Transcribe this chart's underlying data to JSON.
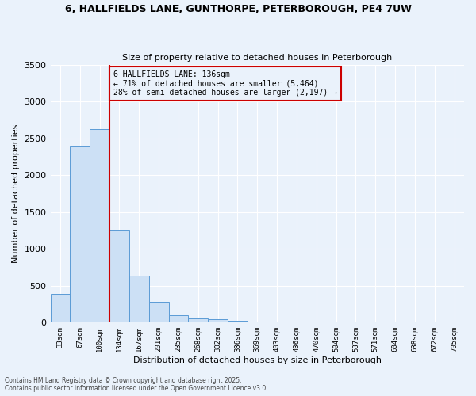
{
  "title_line1": "6, HALLFIELDS LANE, GUNTHORPE, PETERBOROUGH, PE4 7UW",
  "title_line2": "Size of property relative to detached houses in Peterborough",
  "xlabel": "Distribution of detached houses by size in Peterborough",
  "ylabel": "Number of detached properties",
  "categories": [
    "33sqm",
    "67sqm",
    "100sqm",
    "134sqm",
    "167sqm",
    "201sqm",
    "235sqm",
    "268sqm",
    "302sqm",
    "336sqm",
    "369sqm",
    "403sqm",
    "436sqm",
    "470sqm",
    "504sqm",
    "537sqm",
    "571sqm",
    "604sqm",
    "638sqm",
    "672sqm",
    "705sqm"
  ],
  "values": [
    390,
    2400,
    2620,
    1250,
    635,
    285,
    95,
    55,
    45,
    30,
    15,
    8,
    5,
    3,
    2,
    1,
    0,
    0,
    0,
    0,
    0
  ],
  "bar_color": "#cce0f5",
  "bar_edge_color": "#5b9bd5",
  "marker_bar_index": 3,
  "marker_color": "#cc0000",
  "annotation_text": "6 HALLFIELDS LANE: 136sqm\n← 71% of detached houses are smaller (5,464)\n28% of semi-detached houses are larger (2,197) →",
  "annotation_box_color": "#cc0000",
  "ylim": [
    0,
    3500
  ],
  "yticks": [
    0,
    500,
    1000,
    1500,
    2000,
    2500,
    3000,
    3500
  ],
  "footer_line1": "Contains HM Land Registry data © Crown copyright and database right 2025.",
  "footer_line2": "Contains public sector information licensed under the Open Government Licence v3.0.",
  "bg_color": "#eaf2fb",
  "grid_color": "#ffffff",
  "fig_width": 6.0,
  "fig_height": 5.0
}
